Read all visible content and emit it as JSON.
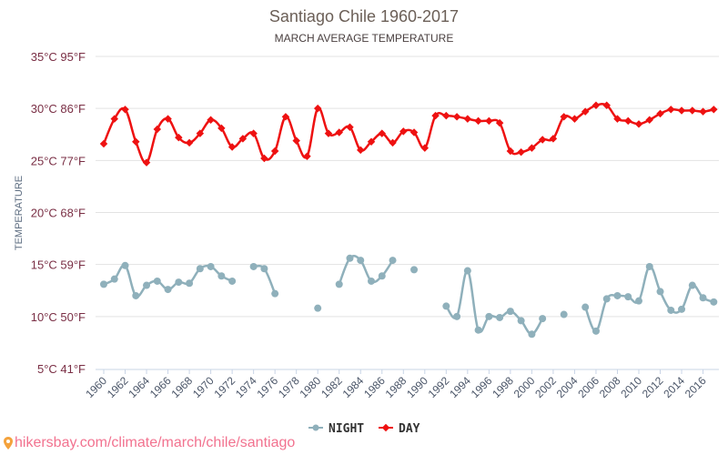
{
  "chart_data": {
    "type": "line",
    "title": "Santiago Chile 1960-2017",
    "subtitle": "MARCH AVERAGE TEMPERATURE",
    "ylabel": "TEMPERATURE",
    "xlabel": "",
    "ylim": [
      5,
      35
    ],
    "yticks": [
      {
        "value": 35,
        "label": "35°C 95°F"
      },
      {
        "value": 30,
        "label": "30°C 86°F"
      },
      {
        "value": 25,
        "label": "25°C 77°F"
      },
      {
        "value": 20,
        "label": "20°C 68°F"
      },
      {
        "value": 15,
        "label": "15°C 59°F"
      },
      {
        "value": 10,
        "label": "10°C 50°F"
      },
      {
        "value": 5,
        "label": "5°C 41°F"
      }
    ],
    "xlim": [
      1960,
      2017
    ],
    "xtick_labels": [
      "1960",
      "1962",
      "1964",
      "1966",
      "1968",
      "1970",
      "1972",
      "1974",
      "1976",
      "1978",
      "1980",
      "1982",
      "1984",
      "1986",
      "1988",
      "1990",
      "1992",
      "1994",
      "1996",
      "1998",
      "2000",
      "2002",
      "2004",
      "2006",
      "2008",
      "2010",
      "2012",
      "2014",
      "2016"
    ],
    "grid": true,
    "legend_position": "bottom-center",
    "x": [
      1960,
      1961,
      1962,
      1963,
      1964,
      1965,
      1966,
      1967,
      1968,
      1969,
      1970,
      1971,
      1972,
      1973,
      1974,
      1975,
      1976,
      1977,
      1978,
      1979,
      1980,
      1981,
      1982,
      1983,
      1984,
      1985,
      1986,
      1987,
      1988,
      1989,
      1990,
      1991,
      1992,
      1993,
      1994,
      1995,
      1996,
      1997,
      1998,
      1999,
      2000,
      2001,
      2002,
      2003,
      2004,
      2005,
      2006,
      2007,
      2008,
      2009,
      2010,
      2011,
      2012,
      2013,
      2014,
      2015,
      2016,
      2017
    ],
    "series": [
      {
        "name": "NIGHT",
        "color": "#8fb0bb",
        "marker": "circle",
        "values": [
          13.1,
          13.6,
          14.9,
          12.0,
          13.0,
          13.4,
          12.6,
          13.3,
          13.2,
          14.6,
          14.8,
          13.9,
          13.4,
          null,
          14.8,
          14.6,
          12.2,
          null,
          null,
          null,
          10.8,
          null,
          13.1,
          15.6,
          15.4,
          13.4,
          13.9,
          15.4,
          null,
          14.5,
          null,
          null,
          11.0,
          10.0,
          14.4,
          8.7,
          10.0,
          9.9,
          10.5,
          9.6,
          8.3,
          9.8,
          null,
          10.2,
          null,
          10.9,
          8.6,
          11.7,
          12.0,
          11.9,
          11.5,
          14.8,
          12.4,
          10.6,
          10.7,
          13.0,
          11.8,
          11.4
        ]
      },
      {
        "name": "DAY",
        "color": "#ee1111",
        "marker": "diamond",
        "values": [
          26.6,
          29.0,
          29.9,
          26.8,
          24.8,
          28.0,
          29.0,
          27.2,
          26.7,
          27.6,
          28.9,
          28.1,
          26.3,
          27.1,
          27.6,
          25.2,
          25.9,
          29.2,
          26.9,
          25.4,
          30.0,
          27.6,
          27.7,
          28.2,
          26.0,
          26.8,
          27.6,
          26.7,
          27.8,
          27.7,
          26.2,
          29.3,
          29.3,
          29.2,
          29.0,
          28.8,
          28.8,
          28.6,
          25.9,
          25.8,
          26.2,
          27.0,
          27.1,
          29.2,
          29.0,
          29.7,
          30.3,
          30.3,
          29.0,
          28.8,
          28.5,
          28.9,
          29.5,
          29.9,
          29.8,
          29.8,
          29.7,
          29.9
        ]
      }
    ]
  },
  "footer": {
    "url_text": "hikersbay.com/climate/march/chile/santiago",
    "icon": "map-pin-icon"
  }
}
